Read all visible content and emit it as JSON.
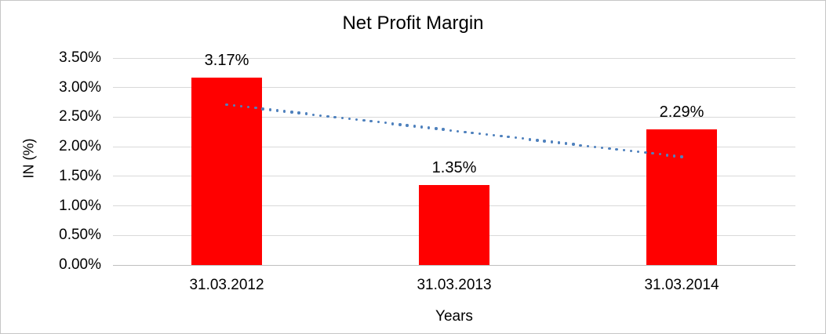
{
  "chart_data": {
    "type": "bar",
    "title": "Net Profit Margin",
    "xlabel": "Years",
    "ylabel": "IN (%)",
    "categories": [
      "31.03.2012",
      "31.03.2013",
      "31.03.2014"
    ],
    "values": [
      3.17,
      1.35,
      2.29
    ],
    "data_labels": [
      "3.17%",
      "1.35%",
      "2.29%"
    ],
    "y_ticks": [
      "3.50%",
      "3.00%",
      "2.50%",
      "2.00%",
      "1.50%",
      "1.00%",
      "0.50%",
      "0.00%"
    ],
    "ylim": [
      0,
      3.5
    ],
    "y_step": 0.5,
    "grid": "horizontal",
    "legend": "none",
    "bar_color": "#ff0000",
    "trendline": {
      "type": "linear",
      "style": "dotted",
      "color": "#4f81bd",
      "start_value": 2.71,
      "end_value": 1.83
    }
  },
  "colors": {
    "gridline": "#d9d9d9",
    "axis_line": "#bfbfbf",
    "text": "#000000",
    "frame": "#c6c6c6",
    "background": "#ffffff"
  }
}
